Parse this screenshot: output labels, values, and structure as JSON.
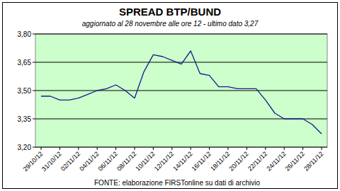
{
  "chart_data": {
    "type": "line",
    "title": "SPREAD BTP/BUND",
    "subtitle": "aggiornato al 28 novembre alle ore 12 - ultimo dato 3,27",
    "source": "FONTE: elaborazione FIRSTonline su dati di archivio",
    "categories": [
      "29/10/12",
      null,
      "31/10/12",
      null,
      "02/11/12",
      null,
      "04/11/12",
      null,
      "06/11/12",
      null,
      "08/11/12",
      null,
      "10/11/12",
      null,
      "12/11/12",
      null,
      "14/11/12",
      null,
      "16/11/12",
      null,
      "18/11/12",
      null,
      "20/11/12",
      null,
      "22/11/12",
      null,
      "24/11/12",
      null,
      "26/11/12",
      null,
      "28/11/12"
    ],
    "values": [
      3.47,
      3.47,
      3.45,
      3.45,
      3.46,
      3.48,
      3.5,
      3.51,
      3.53,
      3.5,
      3.46,
      3.6,
      3.69,
      3.68,
      3.66,
      3.64,
      3.71,
      3.59,
      3.58,
      3.52,
      3.52,
      3.51,
      3.51,
      3.51,
      3.45,
      3.38,
      3.35,
      3.35,
      3.35,
      3.32,
      3.27
    ],
    "color": "#1a1a8c",
    "ylim": [
      3.2,
      3.8
    ],
    "yticks": [
      {
        "value": 3.2,
        "label": "3,20"
      },
      {
        "value": 3.35,
        "label": "3,35"
      },
      {
        "value": 3.5,
        "label": "3,50"
      },
      {
        "value": 3.65,
        "label": "3,65"
      },
      {
        "value": 3.8,
        "label": "3,80"
      }
    ],
    "grid": true
  }
}
